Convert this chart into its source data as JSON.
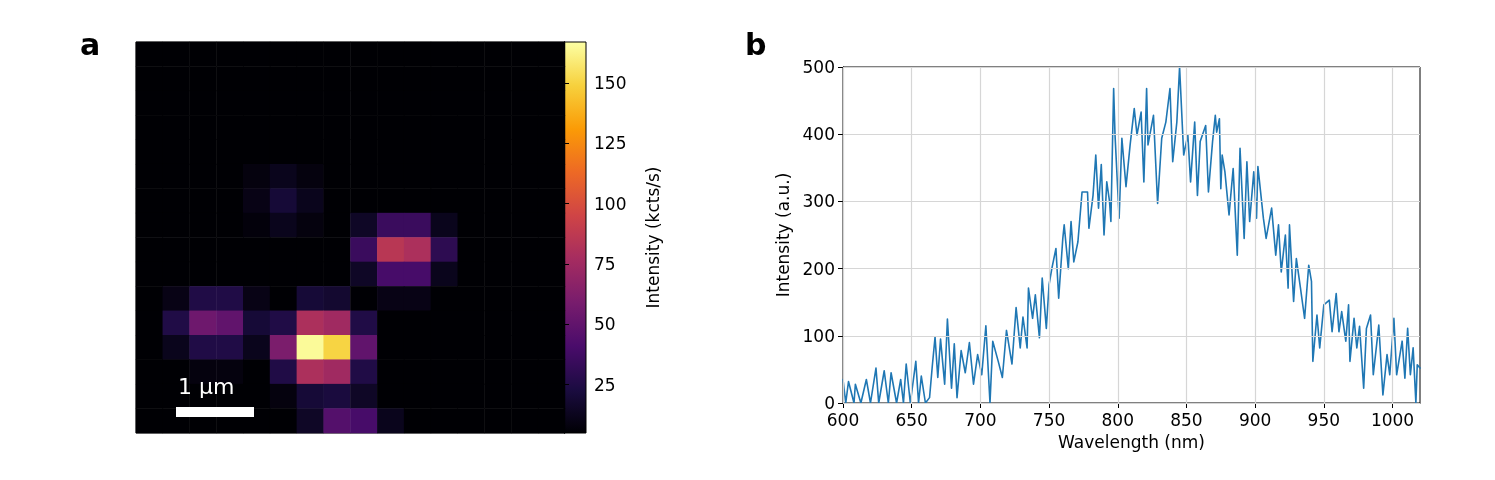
{
  "chart_data": [
    {
      "type": "heatmap",
      "title": "a",
      "clabel": "Intensity (kcts/s)",
      "annotations": [
        "1 µm"
      ],
      "categories": [
        null,
        null,
        null,
        null,
        null,
        null,
        null,
        null,
        null,
        null,
        null,
        null,
        null,
        null,
        null,
        null
      ],
      "y_categories": [
        null,
        null,
        null,
        null,
        null,
        null,
        null,
        null,
        null,
        null,
        null,
        null,
        null,
        null,
        null,
        null
      ],
      "clim": [
        5,
        167
      ],
      "cticks": [
        25,
        50,
        75,
        100,
        125,
        150
      ],
      "colors": [
        "#000004",
        "#1b0c41",
        "#4a0c6b",
        "#781c6d",
        "#a52c60",
        "#cf4446",
        "#ed6925",
        "#fb9b06",
        "#f7d13d",
        "#fcffa4"
      ],
      "cells": [
        [
          5,
          5,
          5,
          5,
          5,
          5,
          5,
          5,
          5,
          5,
          5,
          5,
          5,
          5,
          5,
          5
        ],
        [
          5,
          5,
          5,
          5,
          5,
          5,
          5,
          5,
          5,
          5,
          5,
          5,
          5,
          5,
          5,
          5
        ],
        [
          5,
          5,
          5,
          5,
          5,
          5,
          5,
          5,
          5,
          5,
          5,
          5,
          5,
          5,
          5,
          5
        ],
        [
          5,
          5,
          5,
          5,
          5,
          5,
          5,
          5,
          5,
          5,
          5,
          5,
          5,
          5,
          5,
          5
        ],
        [
          5,
          5,
          5,
          5,
          5,
          5,
          5,
          5,
          5,
          5,
          5,
          5,
          5,
          5,
          5,
          5
        ],
        [
          5,
          5,
          5,
          5,
          8,
          12,
          8,
          5,
          5,
          5,
          5,
          5,
          5,
          5,
          5,
          5
        ],
        [
          5,
          5,
          5,
          5,
          10,
          20,
          12,
          5,
          5,
          5,
          5,
          5,
          5,
          5,
          5,
          5
        ],
        [
          5,
          5,
          5,
          5,
          7,
          12,
          8,
          5,
          15,
          35,
          35,
          12,
          5,
          5,
          5,
          5
        ],
        [
          5,
          5,
          5,
          5,
          5,
          5,
          5,
          5,
          35,
          85,
          80,
          30,
          5,
          5,
          5,
          5
        ],
        [
          5,
          5,
          5,
          5,
          5,
          5,
          5,
          5,
          15,
          40,
          40,
          12,
          5,
          5,
          5,
          5
        ],
        [
          5,
          10,
          25,
          25,
          10,
          5,
          20,
          18,
          5,
          10,
          10,
          5,
          5,
          5,
          5,
          5
        ],
        [
          5,
          25,
          55,
          50,
          20,
          25,
          80,
          75,
          25,
          5,
          5,
          5,
          5,
          5,
          5,
          5
        ],
        [
          5,
          12,
          25,
          25,
          12,
          60,
          165,
          150,
          50,
          5,
          5,
          5,
          5,
          5,
          5,
          5
        ],
        [
          5,
          5,
          8,
          8,
          5,
          25,
          80,
          75,
          25,
          5,
          5,
          5,
          5,
          5,
          5,
          5
        ],
        [
          5,
          5,
          5,
          5,
          5,
          8,
          20,
          22,
          15,
          5,
          5,
          5,
          5,
          5,
          5,
          5
        ],
        [
          5,
          5,
          5,
          5,
          5,
          5,
          15,
          45,
          40,
          12,
          5,
          5,
          5,
          5,
          5,
          5
        ]
      ]
    },
    {
      "type": "line",
      "title": "b",
      "xlabel": "Wavelength (nm)",
      "ylabel": "Intensity (a.u.)",
      "xlim": [
        600,
        1020
      ],
      "xticks": [
        600,
        650,
        700,
        750,
        800,
        850,
        900,
        950,
        1000
      ],
      "ylim": [
        0,
        500
      ],
      "yticks": [
        0,
        100,
        200,
        300,
        400,
        500
      ],
      "grid": true,
      "line_style": "solid",
      "marker": "none",
      "series": [
        {
          "color": "#1f77b4",
          "x": [
            600,
            602,
            604,
            608,
            609,
            613,
            617,
            620,
            624,
            626,
            630,
            633,
            635,
            639,
            642,
            644,
            646,
            649,
            653,
            655,
            657,
            660,
            663,
            665,
            667,
            669,
            671,
            674,
            676,
            679,
            681,
            683,
            686,
            689,
            692,
            695,
            698,
            701,
            704,
            707,
            709,
            713,
            716,
            719,
            723,
            726,
            729,
            731,
            734,
            735,
            738,
            740,
            743,
            745,
            748,
            750,
            752,
            755,
            757,
            760,
            761,
            764,
            766,
            768,
            771,
            774,
            778,
            779,
            782,
            784,
            786,
            788,
            790,
            792,
            794,
            795,
            797,
            798,
            801,
            803,
            806,
            809,
            812,
            814,
            817,
            819,
            821,
            822,
            826,
            829,
            832,
            835,
            838,
            840,
            843,
            845,
            848,
            851,
            853,
            856,
            858,
            860,
            864,
            866,
            869,
            871,
            872,
            874,
            875,
            876,
            878,
            881,
            884,
            887,
            889,
            892,
            894,
            896,
            899,
            901,
            902,
            906,
            908,
            912,
            915,
            917,
            919,
            922,
            924,
            925,
            928,
            930,
            933,
            935,
            936,
            939,
            941,
            942,
            945,
            947,
            950,
            954,
            956,
            959,
            961,
            963,
            966,
            968,
            969,
            972,
            974,
            976,
            979,
            981,
            984,
            986,
            990,
            993,
            996,
            998,
            1001,
            1003,
            1007,
            1009,
            1011,
            1013,
            1015,
            1017,
            1018,
            1020
          ],
          "values": [
            35,
            0,
            32,
            0,
            28,
            0,
            35,
            0,
            52,
            0,
            48,
            0,
            45,
            0,
            35,
            0,
            58,
            0,
            62,
            0,
            40,
            0,
            8,
            55,
            98,
            38,
            95,
            28,
            125,
            22,
            88,
            8,
            78,
            45,
            90,
            28,
            72,
            42,
            115,
            0,
            92,
            62,
            38,
            108,
            58,
            142,
            82,
            128,
            82,
            171,
            126,
            161,
            97,
            186,
            111,
            176,
            200,
            230,
            156,
            245,
            265,
            200,
            270,
            210,
            240,
            314,
            314,
            260,
            309,
            369,
            290,
            355,
            250,
            329,
            300,
            270,
            468,
            399,
            275,
            394,
            322,
            384,
            438,
            399,
            433,
            329,
            468,
            384,
            428,
            297,
            394,
            418,
            468,
            359,
            418,
            500,
            369,
            399,
            329,
            418,
            309,
            389,
            413,
            314,
            389,
            428,
            403,
            423,
            319,
            369,
            344,
            280,
            349,
            220,
            379,
            245,
            359,
            270,
            344,
            275,
            352,
            275,
            245,
            290,
            220,
            265,
            195,
            250,
            171,
            265,
            151,
            215,
            171,
            141,
            126,
            205,
            181,
            62,
            131,
            82,
            146,
            153,
            106,
            163,
            106,
            136,
            92,
            146,
            62,
            126,
            82,
            114,
            22,
            111,
            131,
            42,
            116,
            12,
            72,
            42,
            126,
            42,
            92,
            37,
            111,
            42,
            82,
            0,
            57,
            52
          ]
        }
      ]
    }
  ]
}
